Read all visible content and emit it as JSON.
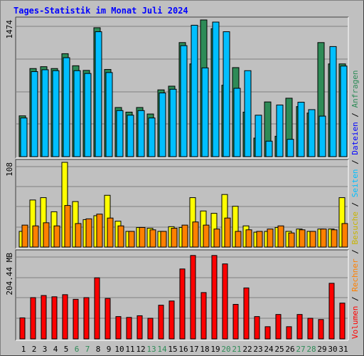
{
  "title": "Tages-Statistik im Monat Juli 2024",
  "colors": {
    "background": "#c0c0c0",
    "title": "#0000ff",
    "gridline": "#808080",
    "weekday_label": "#000000",
    "weekend_label": "#2e8b57"
  },
  "legend": {
    "anfragen": "Anfragen",
    "dateien": "Dateien",
    "seiten": "Seiten",
    "besuche": "Besuche",
    "rechner": "Rechner",
    "volumen": "Volumen",
    "separator": " / ",
    "anfragen_color": "#2e8b57",
    "dateien_color": "#0000ff",
    "seiten_color": "#00bfff",
    "besuche_color": "#c8b400",
    "rechner_color": "#ff8000",
    "volumen_color": "#ff0000"
  },
  "chart_data": [
    {
      "type": "bar",
      "panel": "requests",
      "ymax_label": "1474",
      "ylim": [
        0,
        1474
      ],
      "categories": [
        "1",
        "2",
        "3",
        "4",
        "5",
        "6",
        "7",
        "8",
        "9",
        "10",
        "11",
        "12",
        "13",
        "14",
        "15",
        "16",
        "17",
        "18",
        "19",
        "20",
        "21",
        "22",
        "23",
        "24",
        "25",
        "26",
        "27",
        "28",
        "29",
        "30",
        "31"
      ],
      "weekend_days": [
        "6",
        "7",
        "13",
        "14",
        "20",
        "21",
        "27",
        "28"
      ],
      "series": [
        {
          "name": "Anfragen",
          "color": "#2e8b57",
          "values": [
            440,
            950,
            970,
            950,
            1110,
            980,
            930,
            1390,
            940,
            530,
            480,
            530,
            460,
            720,
            760,
            1230,
            1000,
            1474,
            1380,
            770,
            960,
            480,
            200,
            590,
            220,
            630,
            540,
            470,
            1230,
            1000,
            1000
          ]
        },
        {
          "name": "Dateien",
          "color": "#00bfff",
          "values": [
            440,
            940,
            960,
            950,
            1090,
            950,
            920,
            1370,
            930,
            520,
            470,
            520,
            440,
            710,
            750,
            1220,
            1440,
            980,
            1474,
            1370,
            760,
            950,
            470,
            190,
            580,
            210,
            610,
            530,
            460,
            1210,
            1000
          ]
        }
      ]
    },
    {
      "type": "bar",
      "panel": "visits",
      "ymax_label": "108",
      "ylim": [
        0,
        108
      ],
      "categories": [
        "1",
        "2",
        "3",
        "4",
        "5",
        "6",
        "7",
        "8",
        "9",
        "10",
        "11",
        "12",
        "13",
        "14",
        "15",
        "16",
        "17",
        "18",
        "19",
        "20",
        "21",
        "22",
        "23",
        "24",
        "25",
        "26",
        "27",
        "28",
        "29",
        "30",
        "31"
      ],
      "series": [
        {
          "name": "Seiten",
          "color": "#00bfff",
          "values": [
            20,
            60,
            63,
            45,
            108,
            58,
            35,
            40,
            66,
            33,
            20,
            25,
            24,
            20,
            26,
            25,
            63,
            46,
            43,
            67,
            52,
            27,
            19,
            20,
            25,
            20,
            23,
            20,
            23,
            23,
            63
          ]
        },
        {
          "name": "Besuche",
          "color": "#ffff00",
          "values": [
            20,
            60,
            63,
            45,
            108,
            58,
            35,
            40,
            66,
            33,
            20,
            25,
            24,
            20,
            26,
            25,
            63,
            46,
            43,
            67,
            52,
            27,
            19,
            20,
            25,
            20,
            23,
            20,
            23,
            23,
            63
          ]
        },
        {
          "name": "Rechner",
          "color": "#ff8000",
          "values": [
            28,
            27,
            31,
            27,
            53,
            30,
            36,
            42,
            37,
            27,
            20,
            25,
            22,
            20,
            24,
            28,
            32,
            28,
            23,
            37,
            20,
            22,
            20,
            23,
            27,
            18,
            22,
            20,
            23,
            22,
            30
          ]
        }
      ]
    },
    {
      "type": "bar",
      "panel": "volume",
      "ymax_label": "204.44 MB",
      "ylim": [
        0,
        204.44
      ],
      "categories": [
        "1",
        "2",
        "3",
        "4",
        "5",
        "6",
        "7",
        "8",
        "9",
        "10",
        "11",
        "12",
        "13",
        "14",
        "15",
        "16",
        "17",
        "18",
        "19",
        "20",
        "21",
        "22",
        "23",
        "24",
        "25",
        "26",
        "27",
        "28",
        "29",
        "30",
        "31"
      ],
      "series": [
        {
          "name": "Volumen",
          "color": "#ff0000",
          "values": [
            50,
            98,
            103,
            100,
            105,
            94,
            98,
            145,
            96,
            53,
            51,
            55,
            49,
            80,
            90,
            166,
            198,
            110,
            198,
            178,
            82,
            121,
            53,
            29,
            58,
            29,
            58,
            49,
            46,
            132,
            85
          ]
        }
      ]
    }
  ]
}
